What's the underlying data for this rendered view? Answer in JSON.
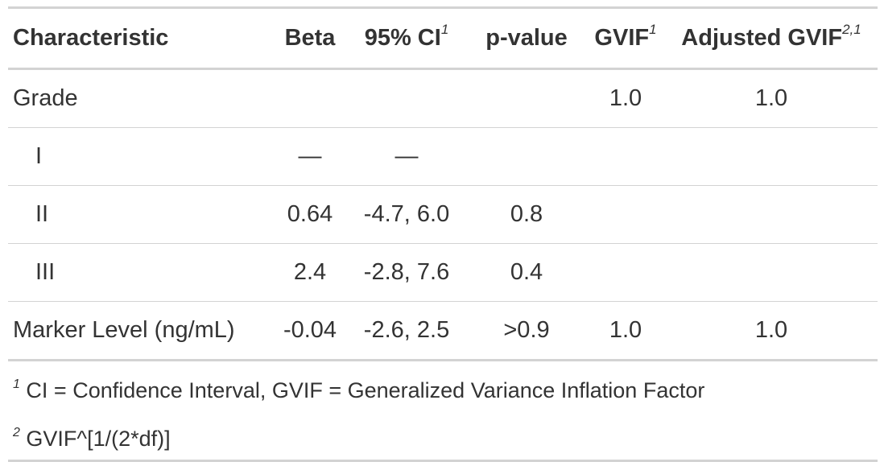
{
  "header": {
    "characteristic": "Characteristic",
    "beta": "Beta",
    "ci": "95% CI",
    "ci_sup": "1",
    "pvalue": "p-value",
    "gvif": "GVIF",
    "gvif_sup": "1",
    "adj_gvif": "Adjusted GVIF",
    "adj_gvif_sup": "2,1"
  },
  "rows": [
    {
      "label": "Grade",
      "beta": "",
      "ci": "",
      "p": "",
      "gvif": "1.0",
      "adj": "1.0"
    },
    {
      "label": "I",
      "beta": "—",
      "ci": "—",
      "p": "",
      "gvif": "",
      "adj": ""
    },
    {
      "label": "II",
      "beta": "0.64",
      "ci": "-4.7, 6.0",
      "p": "0.8",
      "gvif": "",
      "adj": ""
    },
    {
      "label": "III",
      "beta": "2.4",
      "ci": "-2.8, 7.6",
      "p": "0.4",
      "gvif": "",
      "adj": ""
    },
    {
      "label": "Marker Level (ng/mL)",
      "beta": "-0.04",
      "ci": "-2.6, 2.5",
      "p": ">0.9",
      "gvif": "1.0",
      "adj": "1.0"
    }
  ],
  "footnotes": [
    {
      "mark": "1",
      "text": "CI = Confidence Interval, GVIF = Generalized Variance Inflation Factor"
    },
    {
      "mark": "2",
      "text": "GVIF^[1/(2*df)]"
    }
  ]
}
